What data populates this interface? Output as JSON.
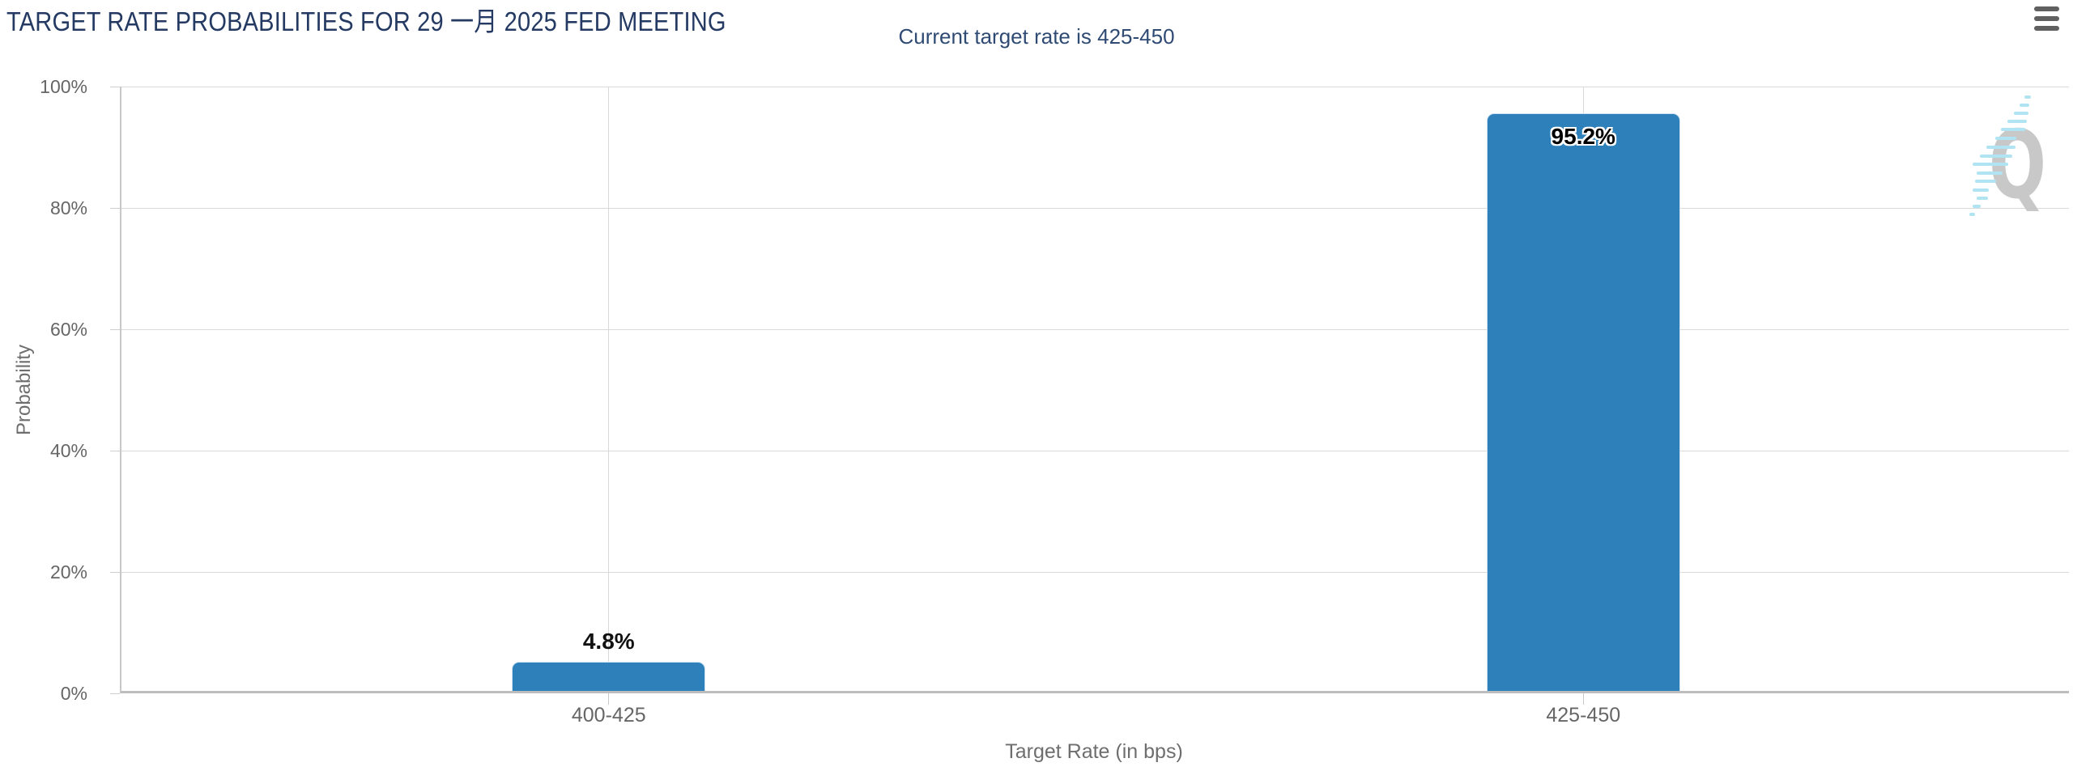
{
  "header": {
    "title": "TARGET RATE PROBABILITIES FOR 29 一月 2025 FED MEETING",
    "subtitle": "Current target rate is 425-450",
    "menu_icon": "hamburger-menu-icon"
  },
  "colors": {
    "title": "#243a63",
    "subtitle": "#2f4b74",
    "bar_fill": "#2d80ba",
    "bar_border": "#cde2f0",
    "gridline": "#d9d9d9",
    "axis_line": "#c8c8c8",
    "tick_label": "#666666",
    "axis_title": "#6e6e6e",
    "data_label": "#111111",
    "menu_icon": "#606060",
    "watermark_gray": "#c6c6c6",
    "watermark_cyan": "#ace3f3"
  },
  "chart_data": {
    "type": "bar",
    "title": "TARGET RATE PROBABILITIES FOR 29 一月 2025 FED MEETING",
    "subtitle": "Current target rate is 425-450",
    "categories": [
      "400-425",
      "425-450"
    ],
    "values": [
      4.8,
      95.2
    ],
    "value_labels": [
      "4.8%",
      "95.2%"
    ],
    "xlabel": "Target Rate (in bps)",
    "ylabel": "Probability",
    "ylim": [
      0,
      100
    ],
    "yticks": [
      0,
      20,
      40,
      60,
      80,
      100
    ],
    "ytick_labels": [
      "0%",
      "20%",
      "40%",
      "60%",
      "80%",
      "100%"
    ],
    "grid": true,
    "legend_position": "none",
    "bar_color": "#2d80ba"
  },
  "watermark": {
    "letter": "Q"
  }
}
